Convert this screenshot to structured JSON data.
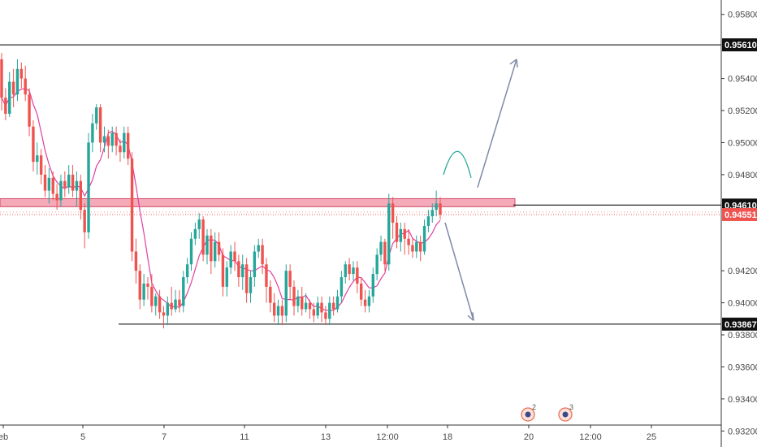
{
  "chart_data": {
    "type": "candlestick",
    "symbol_hint": "",
    "y_axis": {
      "ticks": [
        "0.95800",
        "0.95400",
        "0.95200",
        "0.95000",
        "0.94800",
        "0.94200",
        "0.94000",
        "0.93800",
        "0.93600",
        "0.93400",
        "0.93200"
      ],
      "ylim": [
        0.931,
        0.9589
      ]
    },
    "x_axis": {
      "ticks": [
        "eb",
        "5",
        "7",
        "11",
        "13",
        "12:00",
        "18",
        "20",
        "12:00",
        "25"
      ]
    },
    "price_labels": [
      {
        "label": "0.95610",
        "value": 0.9561,
        "style": "level"
      },
      {
        "label": "0.94610",
        "value": 0.9461,
        "style": "level"
      },
      {
        "label": "0.94551",
        "value": 0.94551,
        "style": "current"
      },
      {
        "label": "0.93867",
        "value": 0.93867,
        "style": "level"
      }
    ],
    "horizontal_lines": [
      {
        "value": 0.9561,
        "from": "left-edge",
        "to": "axis"
      },
      {
        "value": 0.9461,
        "from": "x≈632",
        "to": "axis"
      },
      {
        "value": 0.93867,
        "from": "5/6 region",
        "to": "axis"
      }
    ],
    "zone": {
      "from": 0.946,
      "to": 0.9465,
      "color": "#f4aab8"
    },
    "current_price_line": 0.94551,
    "candles": [
      [
        0.9552,
        0.9528,
        0.9556,
        0.952
      ],
      [
        0.9528,
        0.9518,
        0.9534,
        0.9514
      ],
      [
        0.9518,
        0.9538,
        0.9544,
        0.9516
      ],
      [
        0.9538,
        0.953,
        0.9546,
        0.9522
      ],
      [
        0.953,
        0.9546,
        0.9552,
        0.9526
      ],
      [
        0.9546,
        0.954,
        0.955,
        0.9534
      ],
      [
        0.954,
        0.953,
        0.9548,
        0.9526
      ],
      [
        0.953,
        0.951,
        0.9534,
        0.9504
      ],
      [
        0.951,
        0.9488,
        0.9514,
        0.9482
      ],
      [
        0.9488,
        0.9492,
        0.95,
        0.948
      ],
      [
        0.9492,
        0.948,
        0.9496,
        0.9474
      ],
      [
        0.948,
        0.947,
        0.9486,
        0.9466
      ],
      [
        0.947,
        0.9478,
        0.9484,
        0.9462
      ],
      [
        0.9478,
        0.9468,
        0.9482,
        0.9464
      ],
      [
        0.9468,
        0.9464,
        0.9474,
        0.9458
      ],
      [
        0.9464,
        0.9476,
        0.948,
        0.946
      ],
      [
        0.9476,
        0.9472,
        0.9482,
        0.9466
      ],
      [
        0.9472,
        0.948,
        0.9486,
        0.9468
      ],
      [
        0.948,
        0.947,
        0.9486,
        0.9466
      ],
      [
        0.947,
        0.9476,
        0.9482,
        0.946
      ],
      [
        0.9476,
        0.9458,
        0.948,
        0.9452
      ],
      [
        0.9458,
        0.9444,
        0.9462,
        0.9434
      ],
      [
        0.9444,
        0.95,
        0.9506,
        0.944
      ],
      [
        0.95,
        0.9512,
        0.9518,
        0.9494
      ],
      [
        0.9512,
        0.9522,
        0.9524,
        0.9508
      ],
      [
        0.9522,
        0.95,
        0.9524,
        0.9494
      ],
      [
        0.95,
        0.9504,
        0.951,
        0.9494
      ],
      [
        0.9504,
        0.9498,
        0.9508,
        0.949
      ],
      [
        0.9498,
        0.9506,
        0.951,
        0.9494
      ],
      [
        0.9506,
        0.9498,
        0.951,
        0.9492
      ],
      [
        0.9498,
        0.9494,
        0.9502,
        0.9488
      ],
      [
        0.9494,
        0.9506,
        0.951,
        0.949
      ],
      [
        0.9506,
        0.949,
        0.951,
        0.9486
      ],
      [
        0.949,
        0.9432,
        0.9494,
        0.9426
      ],
      [
        0.9432,
        0.942,
        0.944,
        0.9412
      ],
      [
        0.942,
        0.9402,
        0.9424,
        0.9396
      ],
      [
        0.9402,
        0.9412,
        0.9418,
        0.9398
      ],
      [
        0.9412,
        0.941,
        0.9416,
        0.9402
      ],
      [
        0.941,
        0.9398,
        0.9418,
        0.9394
      ],
      [
        0.9398,
        0.9404,
        0.9406,
        0.9392
      ],
      [
        0.9404,
        0.9394,
        0.9408,
        0.939
      ],
      [
        0.9394,
        0.9392,
        0.9398,
        0.9384
      ],
      [
        0.9392,
        0.94,
        0.9404,
        0.9386
      ],
      [
        0.94,
        0.9396,
        0.941,
        0.9392
      ],
      [
        0.9396,
        0.9402,
        0.9408,
        0.9394
      ],
      [
        0.9402,
        0.9398,
        0.9408,
        0.9394
      ],
      [
        0.9398,
        0.9416,
        0.942,
        0.9394
      ],
      [
        0.9416,
        0.9424,
        0.9428,
        0.9412
      ],
      [
        0.9424,
        0.944,
        0.9444,
        0.942
      ],
      [
        0.944,
        0.9446,
        0.945,
        0.9436
      ],
      [
        0.9446,
        0.9452,
        0.9456,
        0.944
      ],
      [
        0.9452,
        0.943,
        0.9454,
        0.9426
      ],
      [
        0.943,
        0.9442,
        0.9446,
        0.9424
      ],
      [
        0.9442,
        0.9426,
        0.9446,
        0.9418
      ],
      [
        0.9426,
        0.9438,
        0.9444,
        0.9422
      ],
      [
        0.9438,
        0.943,
        0.9444,
        0.9426
      ],
      [
        0.943,
        0.941,
        0.9434,
        0.9404
      ],
      [
        0.941,
        0.9422,
        0.9426,
        0.9404
      ],
      [
        0.9422,
        0.9432,
        0.9436,
        0.9418
      ],
      [
        0.9432,
        0.9426,
        0.9438,
        0.942
      ],
      [
        0.9426,
        0.9416,
        0.943,
        0.941
      ],
      [
        0.9416,
        0.9424,
        0.943,
        0.9408
      ],
      [
        0.9424,
        0.9406,
        0.9428,
        0.94
      ],
      [
        0.9406,
        0.9416,
        0.942,
        0.94
      ],
      [
        0.9416,
        0.9432,
        0.9436,
        0.941
      ],
      [
        0.9432,
        0.9436,
        0.944,
        0.9428
      ],
      [
        0.9436,
        0.9424,
        0.944,
        0.9418
      ],
      [
        0.9424,
        0.941,
        0.9428,
        0.94
      ],
      [
        0.941,
        0.94,
        0.9414,
        0.9394
      ],
      [
        0.94,
        0.9392,
        0.9406,
        0.9388
      ],
      [
        0.9392,
        0.9398,
        0.9402,
        0.9386
      ],
      [
        0.9398,
        0.9392,
        0.9402,
        0.9386
      ],
      [
        0.9392,
        0.942,
        0.9424,
        0.9388
      ],
      [
        0.942,
        0.941,
        0.9424,
        0.9402
      ],
      [
        0.941,
        0.9398,
        0.9414,
        0.9392
      ],
      [
        0.9398,
        0.9404,
        0.9408,
        0.9394
      ],
      [
        0.9404,
        0.9396,
        0.941,
        0.9392
      ],
      [
        0.9396,
        0.94,
        0.9406,
        0.9394
      ],
      [
        0.94,
        0.9396,
        0.9402,
        0.939
      ],
      [
        0.9396,
        0.9392,
        0.94,
        0.9388
      ],
      [
        0.9392,
        0.94,
        0.9404,
        0.939
      ],
      [
        0.94,
        0.9394,
        0.9404,
        0.9388
      ],
      [
        0.9394,
        0.939,
        0.9398,
        0.9386
      ],
      [
        0.939,
        0.94,
        0.9404,
        0.9386
      ],
      [
        0.94,
        0.9396,
        0.9404,
        0.9392
      ],
      [
        0.9396,
        0.9404,
        0.9408,
        0.9394
      ],
      [
        0.9404,
        0.9416,
        0.942,
        0.94
      ],
      [
        0.9416,
        0.9424,
        0.9426,
        0.9412
      ],
      [
        0.9424,
        0.9418,
        0.9428,
        0.9414
      ],
      [
        0.9418,
        0.9422,
        0.9426,
        0.9414
      ],
      [
        0.9422,
        0.9412,
        0.9426,
        0.9406
      ],
      [
        0.9412,
        0.9402,
        0.9416,
        0.9398
      ],
      [
        0.9402,
        0.9398,
        0.9408,
        0.9394
      ],
      [
        0.9398,
        0.9404,
        0.9408,
        0.9394
      ],
      [
        0.9404,
        0.9418,
        0.9422,
        0.94
      ],
      [
        0.9418,
        0.943,
        0.9434,
        0.9414
      ],
      [
        0.943,
        0.9438,
        0.9442,
        0.9426
      ],
      [
        0.9438,
        0.9424,
        0.944,
        0.942
      ],
      [
        0.9424,
        0.9462,
        0.9468,
        0.942
      ],
      [
        0.9462,
        0.945,
        0.9466,
        0.944
      ],
      [
        0.945,
        0.9438,
        0.9454,
        0.9434
      ],
      [
        0.9438,
        0.9446,
        0.945,
        0.9432
      ],
      [
        0.9446,
        0.944,
        0.945,
        0.943
      ],
      [
        0.944,
        0.9436,
        0.9446,
        0.943
      ],
      [
        0.9436,
        0.9432,
        0.944,
        0.9428
      ],
      [
        0.9432,
        0.9438,
        0.9442,
        0.9428
      ],
      [
        0.9438,
        0.9432,
        0.9442,
        0.9426
      ],
      [
        0.9432,
        0.9448,
        0.9452,
        0.943
      ],
      [
        0.9448,
        0.9454,
        0.9458,
        0.9444
      ],
      [
        0.9454,
        0.9458,
        0.9462,
        0.945
      ],
      [
        0.9458,
        0.9462,
        0.947,
        0.9454
      ],
      [
        0.9462,
        0.9455,
        0.9466,
        0.9452
      ]
    ],
    "moving_average_color": "#e040a0",
    "bull_color": "#26a69a",
    "bear_color": "#ef5350",
    "projections": [
      {
        "name": "up-arch",
        "color": "#26a69a",
        "points": [
          [
            0.948
          ],
          [
            0.9495
          ],
          [
            0.9478
          ]
        ]
      },
      {
        "name": "up-arrow",
        "color": "#7f8aa8",
        "from": 0.9472,
        "to": 0.9552
      },
      {
        "name": "down-arrow",
        "color": "#7f8aa8",
        "from": 0.945,
        "to": 0.9389
      }
    ],
    "event_markers": [
      {
        "count": "2"
      },
      {
        "count": "3"
      }
    ],
    "grid": false,
    "legend": "none"
  }
}
